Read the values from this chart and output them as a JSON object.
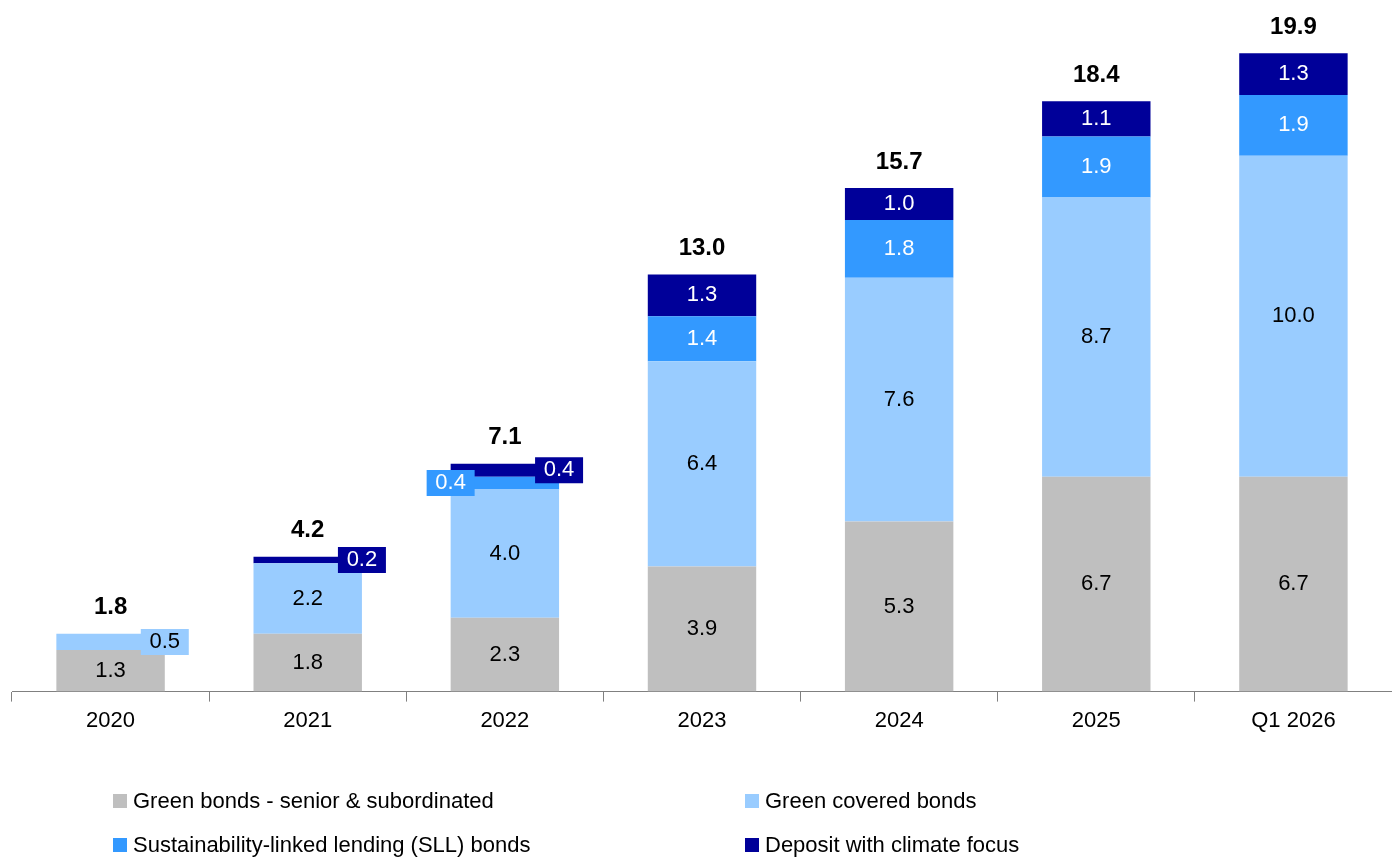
{
  "chart_data": {
    "type": "bar",
    "stacked": true,
    "legend": "bottom",
    "grid": false,
    "tick_labels": "x",
    "categories": [
      "2020",
      "2021",
      "2022",
      "2023",
      "2024",
      "2025",
      "Q1 2026"
    ],
    "ylim": [
      0,
      20
    ],
    "series": [
      {
        "name": "Green bonds - senior & subordinated",
        "color": "#bfbfbf",
        "values": [
          1.3,
          1.8,
          2.3,
          3.9,
          5.3,
          6.7,
          6.7
        ],
        "value_labels": [
          "1.3",
          "1.8",
          "2.3",
          "3.9",
          "5.3",
          "6.7",
          "6.7"
        ]
      },
      {
        "name": "Green covered bonds",
        "color": "#99ccff",
        "values": [
          0.5,
          2.2,
          4.0,
          6.4,
          7.6,
          8.7,
          10.0
        ],
        "value_labels": [
          "0.5",
          "2.2",
          "4.0",
          "6.4",
          "7.6",
          "8.7",
          "10.0"
        ]
      },
      {
        "name": "Sustainability-linked lending (SLL) bonds",
        "color": "#3399ff",
        "values": [
          null,
          null,
          0.4,
          1.4,
          1.8,
          1.9,
          1.9
        ],
        "value_labels": [
          null,
          null,
          "0.4",
          "1.4",
          "1.8",
          "1.9",
          "1.9"
        ]
      },
      {
        "name": "Deposit with climate focus",
        "color": "#000099",
        "values": [
          null,
          0.2,
          0.4,
          1.3,
          1.0,
          1.1,
          1.3
        ],
        "value_labels": [
          null,
          "0.2",
          "0.4",
          "1.3",
          "1.0",
          "1.1",
          "1.3"
        ]
      }
    ],
    "totals": [
      "1.8",
      "4.2",
      "7.1",
      "13.0",
      "15.7",
      "18.4",
      "19.9"
    ]
  }
}
